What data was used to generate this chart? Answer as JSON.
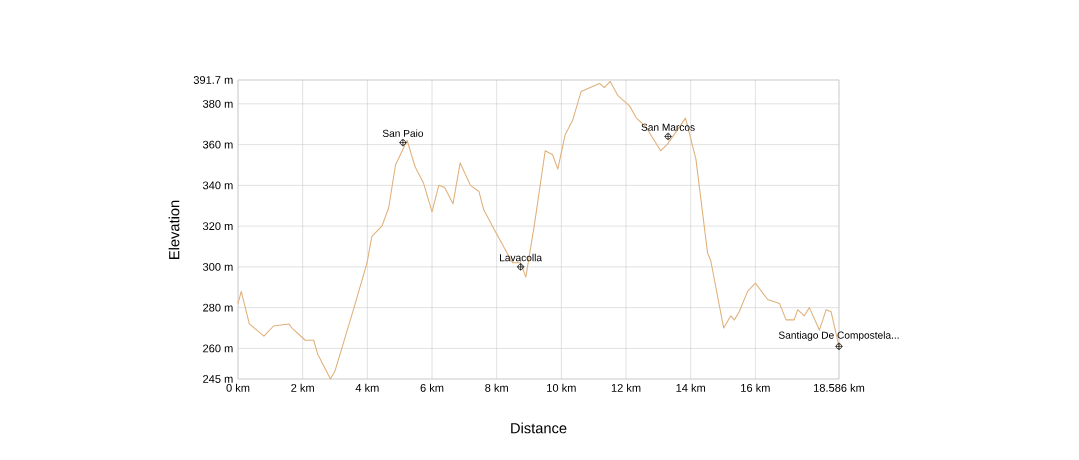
{
  "chart_data": {
    "type": "line",
    "xlabel": "Distance",
    "ylabel": "Elevation",
    "color": "#e0b07a",
    "grid": true,
    "marker": "none",
    "xlim": [
      0,
      18.586
    ],
    "ylim": [
      245,
      391.7
    ],
    "xticks": [
      {
        "value": 0,
        "label": "0 km"
      },
      {
        "value": 2,
        "label": "2 km"
      },
      {
        "value": 4,
        "label": "4 km"
      },
      {
        "value": 6,
        "label": "6 km"
      },
      {
        "value": 8,
        "label": "8 km"
      },
      {
        "value": 10,
        "label": "10 km"
      },
      {
        "value": 12,
        "label": "12 km"
      },
      {
        "value": 14,
        "label": "14 km"
      },
      {
        "value": 16,
        "label": "16 km"
      },
      {
        "value": 18.586,
        "label": "18.586 km"
      }
    ],
    "yticks": [
      {
        "value": 245,
        "label": "245 m"
      },
      {
        "value": 260,
        "label": "260 m"
      },
      {
        "value": 280,
        "label": "280 m"
      },
      {
        "value": 300,
        "label": "300 m"
      },
      {
        "value": 320,
        "label": "320 m"
      },
      {
        "value": 340,
        "label": "340 m"
      },
      {
        "value": 360,
        "label": "360 m"
      },
      {
        "value": 380,
        "label": "380 m"
      },
      {
        "value": 391.7,
        "label": "391.7 m"
      }
    ],
    "x": [
      0,
      0.1,
      0.35,
      0.8,
      1.1,
      1.57,
      1.67,
      2.08,
      2.34,
      2.47,
      2.86,
      3.0,
      3.57,
      3.99,
      4.14,
      4.45,
      4.66,
      4.87,
      5.02,
      5.23,
      5.48,
      5.74,
      6.0,
      6.21,
      6.39,
      6.65,
      6.87,
      7.19,
      7.45,
      7.6,
      7.97,
      8.28,
      8.49,
      8.74,
      8.9,
      9.16,
      9.5,
      9.73,
      9.89,
      10.12,
      10.35,
      10.61,
      11.18,
      11.33,
      11.51,
      11.75,
      12.11,
      12.32,
      12.6,
      13.07,
      13.27,
      13.84,
      14.16,
      14.52,
      14.62,
      15.02,
      15.24,
      15.35,
      15.5,
      15.76,
      16.0,
      16.38,
      16.75,
      16.95,
      17.2,
      17.31,
      17.51,
      17.67,
      17.98,
      18.19,
      18.34,
      18.586
    ],
    "values": [
      282,
      288,
      272,
      266,
      271,
      272,
      270,
      264,
      264,
      257,
      245,
      249,
      279,
      302,
      315,
      320,
      329,
      350,
      355,
      362,
      349,
      341,
      327,
      340,
      339,
      331,
      351,
      340,
      337,
      328,
      317,
      308,
      302,
      302,
      295,
      320,
      357,
      355,
      348,
      365,
      372,
      386,
      390,
      388,
      391,
      384,
      379,
      373,
      369,
      357,
      360,
      373,
      353,
      307,
      303,
      270,
      276,
      274,
      278,
      288,
      292,
      284,
      282,
      274,
      274,
      279,
      276,
      280,
      269,
      279,
      278,
      261
    ],
    "annotations": [
      {
        "text": "San Paio",
        "x": 5.1,
        "y": 361
      },
      {
        "text": "Lavacolla",
        "x": 8.74,
        "y": 300
      },
      {
        "text": "San Marcos",
        "x": 13.3,
        "y": 364
      },
      {
        "text": "Santiago De Compostela...",
        "x": 18.586,
        "y": 261
      }
    ]
  }
}
